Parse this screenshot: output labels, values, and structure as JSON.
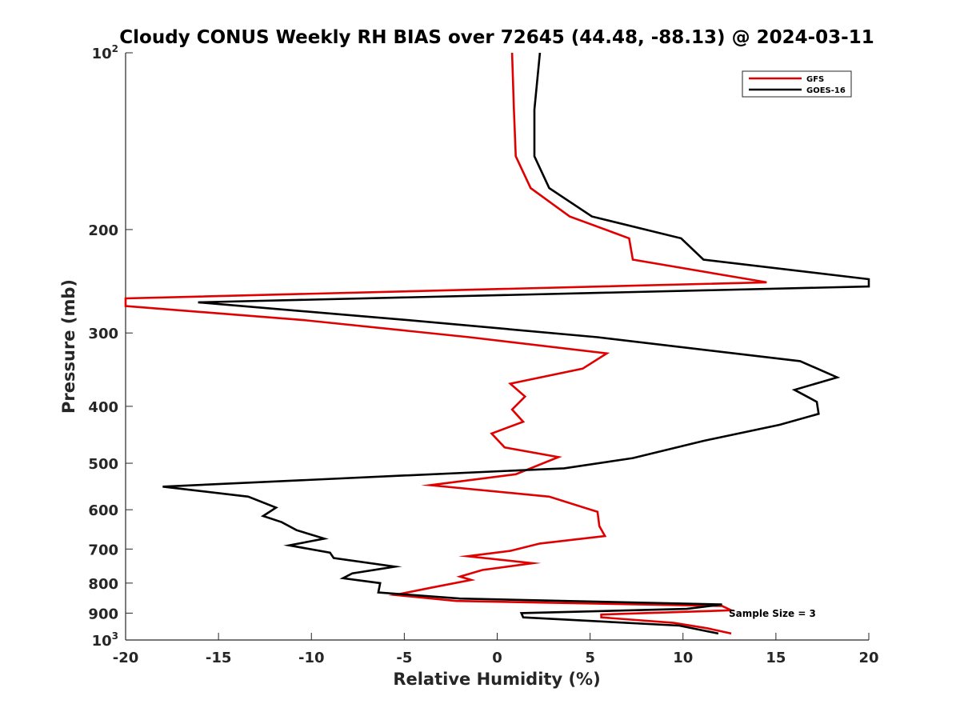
{
  "chart_data": {
    "type": "line",
    "title": "Cloudy CONUS Weekly RH BIAS over 72645 (44.48, -88.13) @ 2024-03-11",
    "xlabel": "Relative Humidity (%)",
    "ylabel": "Pressure (mb)",
    "xlim": [
      -20,
      20
    ],
    "ylim": [
      100,
      1000
    ],
    "y_scale": "log",
    "y_reversed": true,
    "x_ticks": [
      "-20",
      "-15",
      "-10",
      "-5",
      "0",
      "5",
      "10",
      "15",
      "20"
    ],
    "y_ticks": [
      {
        "value": 100,
        "base": "10",
        "exp": "2"
      },
      {
        "value": 200,
        "label": "200"
      },
      {
        "value": 300,
        "label": "300"
      },
      {
        "value": 400,
        "label": "400"
      },
      {
        "value": 500,
        "label": "500"
      },
      {
        "value": 600,
        "label": "600"
      },
      {
        "value": 700,
        "label": "700"
      },
      {
        "value": 800,
        "label": "800"
      },
      {
        "value": 900,
        "label": "900"
      },
      {
        "value": 1000,
        "base": "10",
        "exp": "3"
      }
    ],
    "grid": false,
    "legend_position": "top-right",
    "annotation": "Sample Size = 3",
    "series": [
      {
        "name": "GFS",
        "color": "#e00000",
        "points": [
          [
            0.8,
            100
          ],
          [
            0.9,
            125
          ],
          [
            1.0,
            150
          ],
          [
            1.8,
            170
          ],
          [
            3.9,
            190
          ],
          [
            7.1,
            207
          ],
          [
            7.3,
            225
          ],
          [
            14.5,
            246
          ],
          [
            -20,
            262
          ],
          [
            -20,
            270
          ],
          [
            -10.5,
            285
          ],
          [
            -1.5,
            305
          ],
          [
            5.9,
            325
          ],
          [
            4.6,
            345
          ],
          [
            0.7,
            366
          ],
          [
            1.5,
            385
          ],
          [
            0.8,
            405
          ],
          [
            1.4,
            425
          ],
          [
            -0.3,
            445
          ],
          [
            0.4,
            470
          ],
          [
            3.3,
            488
          ],
          [
            1.0,
            522
          ],
          [
            -3.6,
            545
          ],
          [
            2.8,
            570
          ],
          [
            5.4,
            605
          ],
          [
            5.5,
            640
          ],
          [
            5.8,
            665
          ],
          [
            2.3,
            685
          ],
          [
            0.7,
            705
          ],
          [
            -1.6,
            720
          ],
          [
            1.9,
            740
          ],
          [
            -0.8,
            760
          ],
          [
            -2.0,
            780
          ],
          [
            -1.4,
            790
          ],
          [
            -3.6,
            815
          ],
          [
            -5.5,
            838
          ],
          [
            -2.2,
            858
          ],
          [
            12.1,
            875
          ],
          [
            12.6,
            890
          ],
          [
            5.6,
            905
          ],
          [
            5.6,
            915
          ],
          [
            9.5,
            935
          ],
          [
            11.3,
            955
          ],
          [
            12.6,
            975
          ]
        ]
      },
      {
        "name": "GOES-16",
        "color": "#000000",
        "points": [
          [
            2.3,
            100
          ],
          [
            2.0,
            125
          ],
          [
            2.0,
            150
          ],
          [
            2.8,
            170
          ],
          [
            5.1,
            190
          ],
          [
            9.9,
            207
          ],
          [
            11.1,
            225
          ],
          [
            20.0,
            243
          ],
          [
            20.0,
            250
          ],
          [
            -16.1,
            266
          ],
          [
            -4.9,
            285
          ],
          [
            5.4,
            305
          ],
          [
            16.3,
            335
          ],
          [
            18.3,
            357
          ],
          [
            16.0,
            375
          ],
          [
            17.2,
            393
          ],
          [
            17.3,
            412
          ],
          [
            15.2,
            430
          ],
          [
            11.1,
            458
          ],
          [
            7.3,
            490
          ],
          [
            3.6,
            510
          ],
          [
            -5.2,
            525
          ],
          [
            -18.0,
            548
          ],
          [
            -13.4,
            570
          ],
          [
            -11.9,
            595
          ],
          [
            -12.6,
            615
          ],
          [
            -11.6,
            630
          ],
          [
            -10.8,
            650
          ],
          [
            -9.3,
            672
          ],
          [
            -11.2,
            690
          ],
          [
            -9.0,
            710
          ],
          [
            -8.8,
            725
          ],
          [
            -5.5,
            750
          ],
          [
            -7.8,
            770
          ],
          [
            -8.3,
            785
          ],
          [
            -6.3,
            800
          ],
          [
            -6.4,
            830
          ],
          [
            -2.0,
            850
          ],
          [
            12.1,
            870
          ],
          [
            10.2,
            885
          ],
          [
            1.3,
            900
          ],
          [
            1.4,
            915
          ],
          [
            9.8,
            945
          ],
          [
            11.9,
            975
          ]
        ]
      }
    ]
  }
}
